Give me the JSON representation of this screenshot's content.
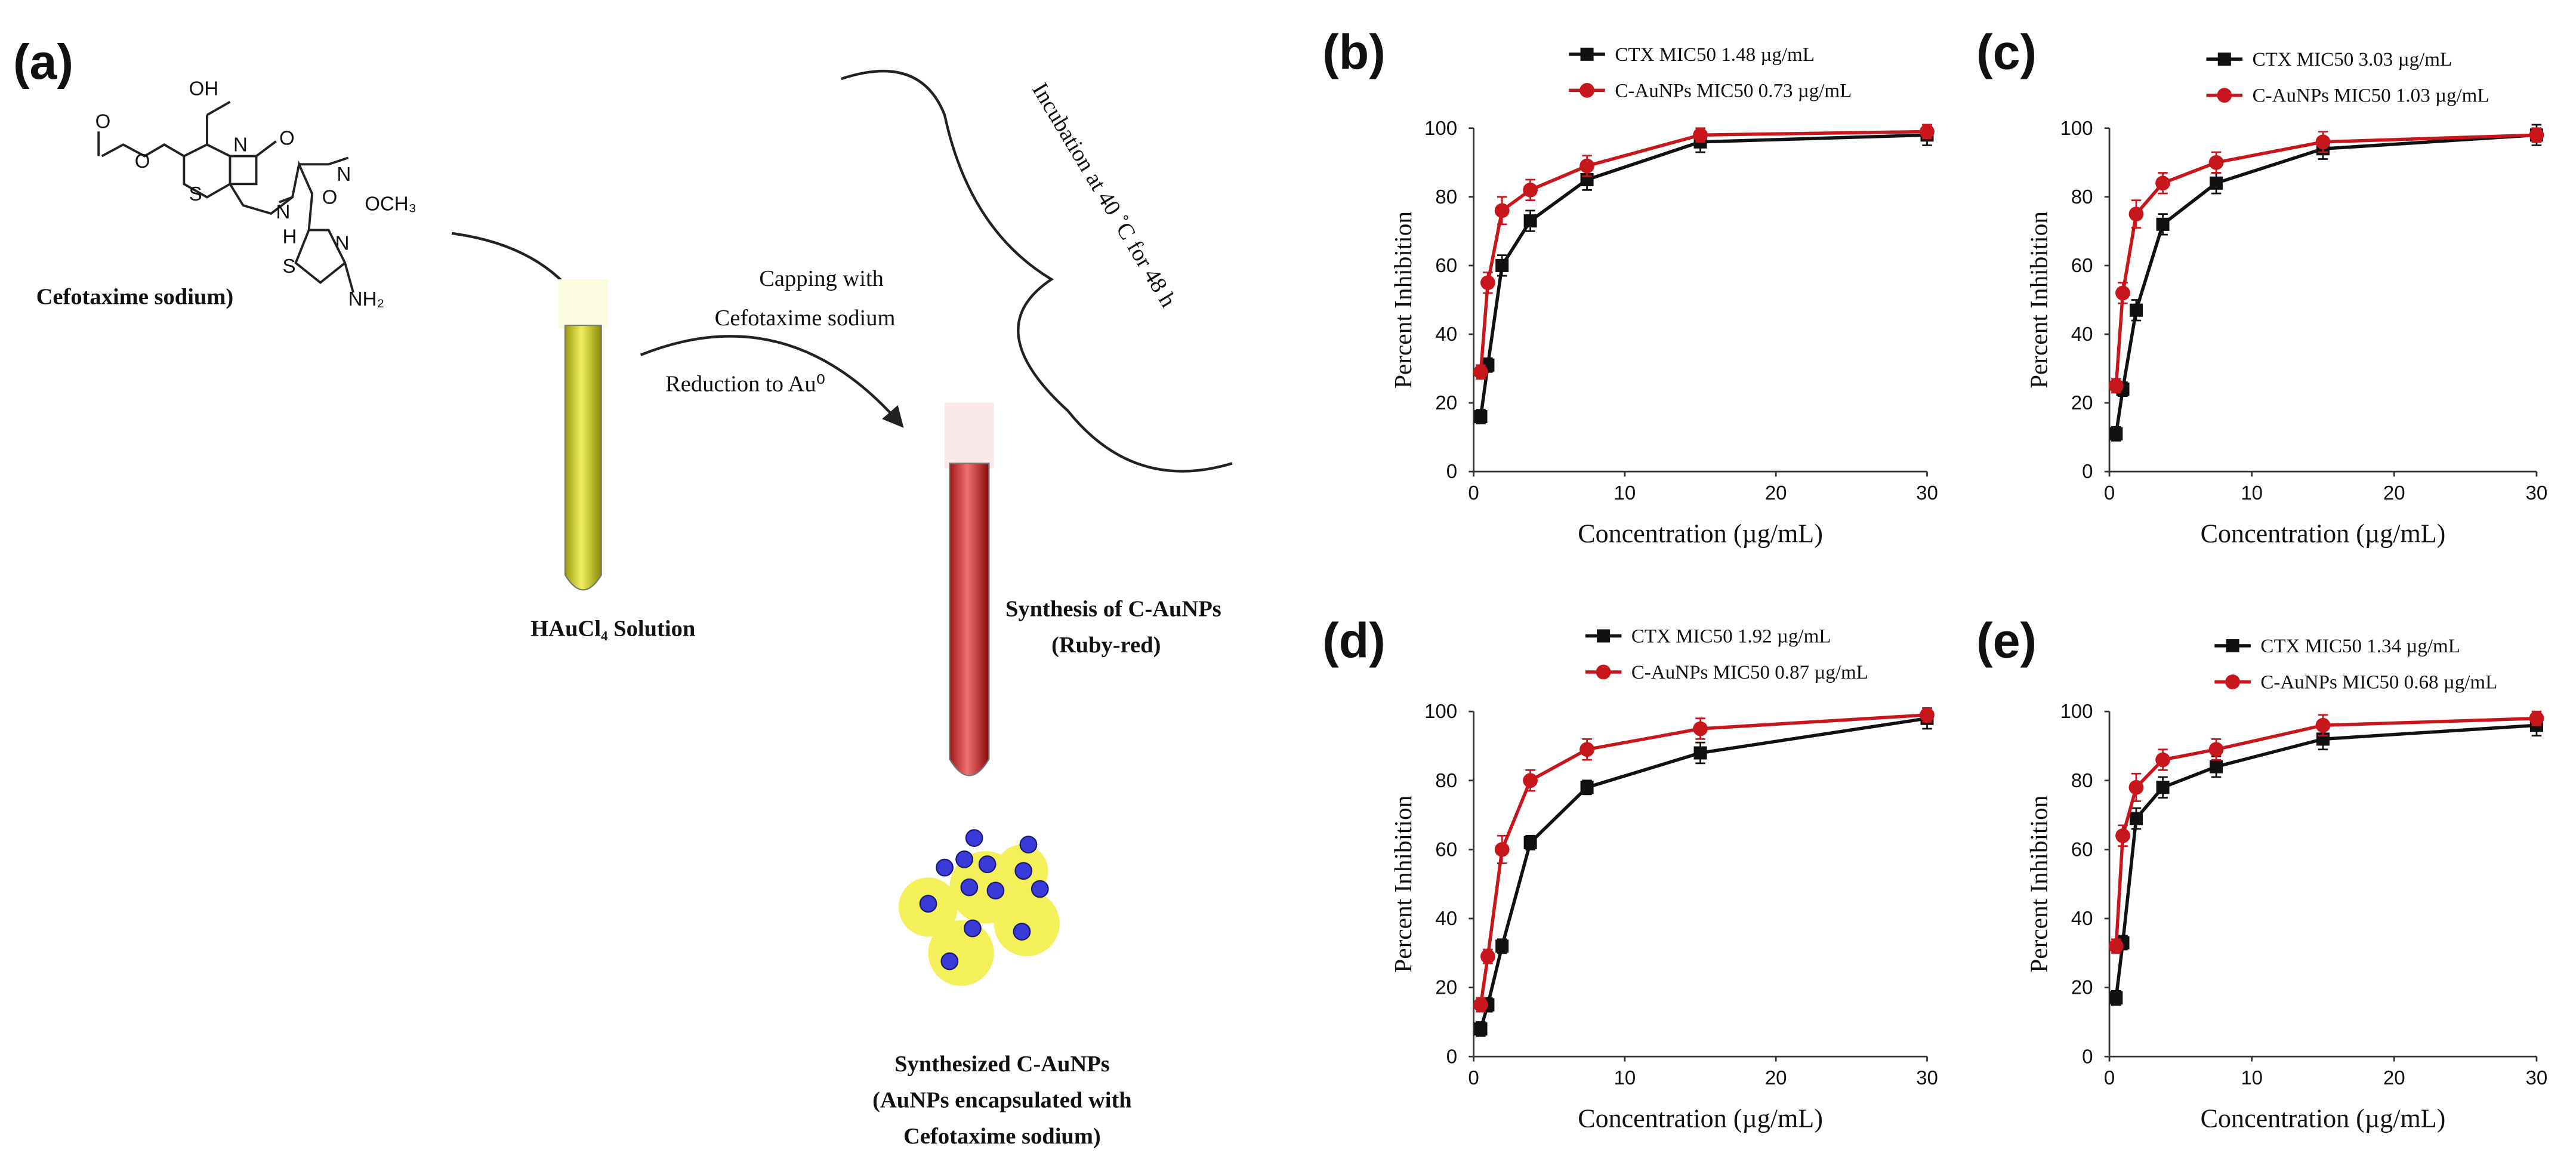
{
  "schematic": {
    "panel_label": "(a)",
    "drug_label": "Cefotaxime sodium)",
    "structure_labels": [
      "OH",
      "O",
      "O",
      "O",
      "N",
      "S",
      "H",
      "N",
      "O",
      "N",
      "OCH₃",
      "N",
      "S",
      "NH₂"
    ],
    "solution_label": "HAuCl₄ Solution",
    "step1_line1": "Capping with",
    "step1_line2": "Cefotaxime sodium",
    "step2": "Reduction to Au⁰",
    "incubation": "Incubation at 40 ˚C for 48 h",
    "synthesis_line1": "Synthesis of C-AuNPs",
    "synthesis_line2": "(Ruby-red)",
    "product_line1": "Synthesized C-AuNPs",
    "product_line2": "(AuNPs encapsulated with",
    "product_line3": "Cefotaxime sodium)"
  },
  "chart_data": [
    {
      "type": "line",
      "panel_label": "(b)",
      "x_label": "Concentration (µg/mL)",
      "y_label": "Percent Inhibition",
      "x": [
        0.47,
        0.94,
        1.88,
        3.75,
        7.5,
        15,
        30
      ],
      "xlim": [
        0,
        30
      ],
      "xticks": [
        0,
        10,
        20,
        30
      ],
      "ylim": [
        0,
        100
      ],
      "yticks": [
        0,
        20,
        40,
        60,
        80,
        100
      ],
      "series": [
        {
          "name": "CTX MIC50  1.48 µg/mL",
          "color": "#111111",
          "marker": "square",
          "values": [
            16,
            31,
            60,
            73,
            85,
            96,
            98
          ],
          "errors": [
            2,
            2,
            3,
            3,
            3,
            3,
            3
          ]
        },
        {
          "name": "C-AuNPs MIC50  0.73 µg/mL",
          "color": "#c8161d",
          "marker": "circle",
          "values": [
            29,
            55,
            76,
            82,
            89,
            98,
            99
          ],
          "errors": [
            2,
            3,
            4,
            3,
            3,
            2,
            2
          ]
        }
      ]
    },
    {
      "type": "line",
      "panel_label": "(c)",
      "x_label": "Concentration (µg/mL)",
      "y_label": "Percent Inhibition",
      "x": [
        0.47,
        0.94,
        1.88,
        3.75,
        7.5,
        15,
        30
      ],
      "xlim": [
        0,
        30
      ],
      "xticks": [
        0,
        10,
        20,
        30
      ],
      "ylim": [
        0,
        100
      ],
      "yticks": [
        0,
        20,
        40,
        60,
        80,
        100
      ],
      "series": [
        {
          "name": "CTX MIC50  3.03 µg/mL",
          "color": "#111111",
          "marker": "square",
          "values": [
            11,
            24,
            47,
            72,
            84,
            94,
            98
          ],
          "errors": [
            2,
            2,
            3,
            3,
            3,
            3,
            3
          ]
        },
        {
          "name": "C-AuNPs MIC50  1.03 µg/mL",
          "color": "#c8161d",
          "marker": "circle",
          "values": [
            25,
            52,
            75,
            84,
            90,
            96,
            98
          ],
          "errors": [
            2,
            3,
            4,
            3,
            3,
            3,
            2
          ]
        }
      ]
    },
    {
      "type": "line",
      "panel_label": "(d)",
      "x_label": "Concentration (µg/mL)",
      "y_label": "Percent Inhibition",
      "x": [
        0.47,
        0.94,
        1.88,
        3.75,
        7.5,
        15,
        30
      ],
      "xlim": [
        0,
        30
      ],
      "xticks": [
        0,
        10,
        20,
        30
      ],
      "ylim": [
        0,
        100
      ],
      "yticks": [
        0,
        20,
        40,
        60,
        80,
        100
      ],
      "series": [
        {
          "name": "CTX MIC50  1.92 µg/mL",
          "color": "#111111",
          "marker": "square",
          "values": [
            8,
            15,
            32,
            62,
            78,
            88,
            98
          ],
          "errors": [
            2,
            2,
            2,
            2,
            2,
            3,
            3
          ]
        },
        {
          "name": "C-AuNPs MIC50  0.87 µg/mL",
          "color": "#c8161d",
          "marker": "circle",
          "values": [
            15,
            29,
            60,
            80,
            89,
            95,
            99
          ],
          "errors": [
            2,
            2,
            4,
            3,
            3,
            3,
            2
          ]
        }
      ]
    },
    {
      "type": "line",
      "panel_label": "(e)",
      "x_label": "Concentration (µg/mL)",
      "y_label": "Percent Inhibition",
      "x": [
        0.47,
        0.94,
        1.88,
        3.75,
        7.5,
        15,
        30
      ],
      "xlim": [
        0,
        30
      ],
      "xticks": [
        0,
        10,
        20,
        30
      ],
      "ylim": [
        0,
        100
      ],
      "yticks": [
        0,
        20,
        40,
        60,
        80,
        100
      ],
      "series": [
        {
          "name": "CTX MIC50  1.34 µg/mL",
          "color": "#111111",
          "marker": "square",
          "values": [
            17,
            33,
            69,
            78,
            84,
            92,
            96
          ],
          "errors": [
            2,
            2,
            3,
            3,
            3,
            3,
            3
          ]
        },
        {
          "name": "C-AuNPs MIC50  0.68 µg/mL",
          "color": "#c8161d",
          "marker": "circle",
          "values": [
            32,
            64,
            78,
            86,
            89,
            96,
            98
          ],
          "errors": [
            2,
            3,
            4,
            3,
            3,
            3,
            2
          ]
        }
      ]
    }
  ]
}
